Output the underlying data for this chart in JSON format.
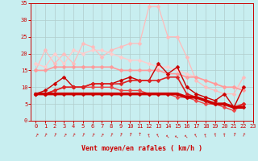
{
  "background_color": "#c8eef0",
  "grid_color": "#b0cccc",
  "xlabel": "Vent moyen/en rafales ( km/h )",
  "tick_color": "#cc0000",
  "xlim": [
    -0.5,
    23
  ],
  "ylim": [
    0,
    35
  ],
  "yticks": [
    0,
    5,
    10,
    15,
    20,
    25,
    30,
    35
  ],
  "xticks": [
    0,
    1,
    2,
    3,
    4,
    5,
    6,
    7,
    8,
    9,
    10,
    11,
    12,
    13,
    14,
    15,
    16,
    17,
    18,
    19,
    20,
    21,
    22,
    23
  ],
  "series": [
    {
      "name": "light_pink_noisy",
      "y": [
        15,
        21,
        17,
        20,
        17,
        23,
        22,
        19,
        21,
        22,
        23,
        23,
        34,
        34,
        25,
        25,
        19,
        12,
        10,
        9,
        8,
        8,
        13,
        null
      ],
      "color": "#ffbbbb",
      "linewidth": 0.9,
      "marker": "D",
      "markersize": 2.5,
      "zorder": 2
    },
    {
      "name": "light_pink_smooth_high",
      "y": [
        17,
        16,
        20,
        17,
        21,
        20,
        21,
        21,
        20,
        19,
        18,
        18,
        17,
        16,
        16,
        15,
        14,
        13,
        12,
        11,
        10,
        10,
        10,
        null
      ],
      "color": "#ffcccc",
      "linewidth": 1.0,
      "marker": "D",
      "markersize": 2.5,
      "zorder": 2
    },
    {
      "name": "pink_diagonal",
      "y": [
        15,
        15,
        16,
        16,
        16,
        16,
        16,
        16,
        16,
        15,
        15,
        15,
        15,
        15,
        14,
        14,
        13,
        13,
        12,
        11,
        10,
        10,
        9,
        null
      ],
      "color": "#ff9999",
      "linewidth": 1.2,
      "marker": "D",
      "markersize": 2.5,
      "zorder": 3
    },
    {
      "name": "dark_red_noisy",
      "y": [
        8,
        9,
        11,
        13,
        10,
        10,
        11,
        11,
        11,
        12,
        13,
        12,
        12,
        17,
        14,
        16,
        10,
        8,
        7,
        6,
        8,
        4,
        10,
        null
      ],
      "color": "#cc0000",
      "linewidth": 1.0,
      "marker": "D",
      "markersize": 2.5,
      "zorder": 4
    },
    {
      "name": "dark_red_thick_flat",
      "y": [
        8,
        8,
        8,
        8,
        8,
        8,
        8,
        8,
        8,
        8,
        8,
        8,
        8,
        8,
        8,
        8,
        7,
        7,
        6,
        5,
        5,
        4,
        4,
        null
      ],
      "color": "#cc0000",
      "linewidth": 2.5,
      "marker": "D",
      "markersize": 2.5,
      "zorder": 5
    },
    {
      "name": "red_declining",
      "y": [
        8,
        8,
        9,
        10,
        10,
        10,
        11,
        11,
        11,
        11,
        12,
        12,
        12,
        12,
        13,
        13,
        8,
        7,
        6,
        5,
        5,
        4,
        5,
        null
      ],
      "color": "#dd2222",
      "linewidth": 1.2,
      "marker": "D",
      "markersize": 2.5,
      "zorder": 4
    },
    {
      "name": "red_very_declining",
      "y": [
        8,
        8,
        9,
        10,
        10,
        10,
        10,
        10,
        10,
        9,
        9,
        9,
        8,
        8,
        8,
        7,
        7,
        6,
        5,
        5,
        4,
        3,
        5,
        null
      ],
      "color": "#ee4444",
      "linewidth": 1.0,
      "marker": "D",
      "markersize": 2.5,
      "zorder": 3
    }
  ],
  "wind_arrows": [
    -30,
    -25,
    -20,
    -30,
    -25,
    -20,
    -25,
    -30,
    -20,
    -15,
    -10,
    0,
    15,
    30,
    45,
    60,
    45,
    30,
    15,
    10,
    5,
    -10,
    -20,
    -30
  ]
}
